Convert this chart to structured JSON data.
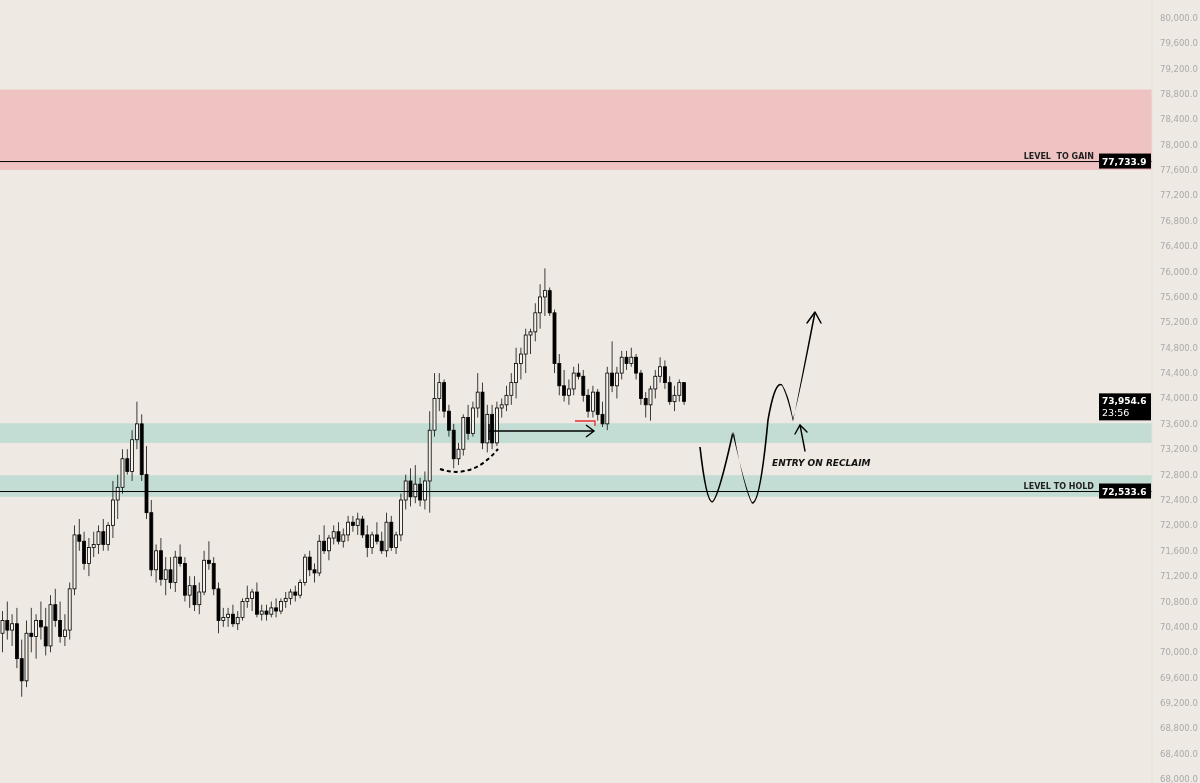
{
  "chart_data": {
    "type": "candlestick",
    "categories": [
      null,
      null,
      null,
      null,
      null,
      null,
      null,
      null,
      null,
      null,
      null,
      null,
      null,
      null,
      null,
      null,
      null,
      null,
      null,
      null,
      null,
      null,
      null,
      null,
      null,
      null,
      null,
      null,
      null,
      null,
      null,
      null,
      null,
      null,
      null,
      null,
      null,
      null,
      null,
      null,
      null,
      null,
      null,
      null,
      null,
      null,
      null,
      null,
      null,
      null,
      null,
      null,
      null,
      null,
      null,
      null,
      null,
      null,
      null,
      null,
      null,
      null,
      null,
      null,
      null,
      null,
      null,
      null,
      null,
      null,
      null,
      null,
      null,
      null,
      null,
      null,
      null,
      null,
      null,
      null,
      null,
      null,
      null,
      null,
      null,
      null,
      null,
      null,
      null,
      null,
      null,
      null,
      null,
      null,
      null,
      null,
      null,
      null,
      null,
      null,
      null,
      null,
      null,
      null,
      null,
      null,
      null,
      null,
      null,
      null,
      null,
      null,
      null,
      null,
      null,
      null,
      null,
      null,
      null,
      null,
      null,
      null,
      null,
      null,
      null,
      null,
      null,
      null,
      null,
      null,
      null,
      null,
      null,
      null,
      null,
      null,
      null,
      null,
      null,
      null,
      null,
      null,
      null,
      null,
      null,
      null,
      null,
      null,
      null,
      null,
      null,
      null,
      null,
      null,
      null,
      null,
      null,
      null,
      null,
      null,
      null,
      null,
      null,
      null,
      null,
      null,
      null,
      null,
      null,
      null,
      null,
      null,
      null,
      null,
      null,
      null,
      null,
      null,
      null,
      null,
      null,
      null,
      null,
      null,
      null,
      null,
      null,
      null,
      null,
      null,
      null,
      null,
      null,
      null,
      null,
      null,
      null,
      null,
      null,
      null,
      null,
      null,
      null,
      null,
      null,
      null,
      null,
      null,
      null,
      null,
      null,
      null,
      null,
      null,
      null,
      null,
      null,
      null,
      null,
      null,
      null,
      null,
      null,
      null,
      null,
      null,
      null,
      null,
      null,
      null,
      null,
      null,
      null,
      null,
      null,
      null,
      null,
      null,
      null,
      null
    ],
    "ohlc": [
      [
        70300,
        70650,
        70000,
        70500
      ],
      [
        70500,
        70800,
        70200,
        70350
      ],
      [
        70350,
        70600,
        70100,
        70450
      ],
      [
        70450,
        70700,
        69750,
        69900
      ],
      [
        69900,
        70200,
        69300,
        69550
      ],
      [
        69550,
        70500,
        69450,
        70300
      ],
      [
        70300,
        70700,
        70000,
        70250
      ],
      [
        70250,
        70600,
        69900,
        70500
      ],
      [
        70500,
        70800,
        70200,
        70400
      ],
      [
        70400,
        70700,
        69950,
        70100
      ],
      [
        70100,
        70900,
        70000,
        70750
      ],
      [
        70750,
        71000,
        70400,
        70500
      ],
      [
        70500,
        70800,
        70150,
        70250
      ],
      [
        70250,
        70600,
        70100,
        70350
      ],
      [
        70350,
        71100,
        70200,
        71000
      ],
      [
        71000,
        72000,
        70900,
        71850
      ],
      [
        71850,
        72100,
        71600,
        71750
      ],
      [
        71750,
        71900,
        71300,
        71400
      ],
      [
        71400,
        71800,
        71200,
        71650
      ],
      [
        71650,
        71900,
        71500,
        71700
      ],
      [
        71700,
        72000,
        71550,
        71900
      ],
      [
        71900,
        72100,
        71600,
        71700
      ],
      [
        71700,
        72050,
        71600,
        72000
      ],
      [
        72000,
        72700,
        71800,
        72400
      ],
      [
        72400,
        72800,
        72100,
        72600
      ],
      [
        72600,
        73200,
        72500,
        73050
      ],
      [
        73050,
        73200,
        72800,
        72850
      ],
      [
        72850,
        73500,
        72700,
        73350
      ],
      [
        73350,
        73950,
        73200,
        73600
      ],
      [
        73600,
        73750,
        72700,
        72800
      ],
      [
        72800,
        73250,
        72100,
        72200
      ],
      [
        72200,
        72400,
        71200,
        71300
      ],
      [
        71300,
        71700,
        71100,
        71600
      ],
      [
        71600,
        71800,
        71050,
        71150
      ],
      [
        71150,
        71500,
        70900,
        71300
      ],
      [
        71300,
        71500,
        71000,
        71100
      ],
      [
        71100,
        71600,
        70950,
        71500
      ],
      [
        71500,
        71700,
        71350,
        71400
      ],
      [
        71400,
        71500,
        70800,
        70900
      ],
      [
        70900,
        71200,
        70700,
        71050
      ],
      [
        71050,
        71200,
        70650,
        70750
      ],
      [
        70750,
        71100,
        70600,
        70950
      ],
      [
        70950,
        71600,
        70900,
        71450
      ],
      [
        71450,
        71750,
        71300,
        71400
      ],
      [
        71400,
        71500,
        70900,
        71000
      ],
      [
        71000,
        71100,
        70300,
        70500
      ],
      [
        70500,
        70700,
        70400,
        70550
      ],
      [
        70550,
        70700,
        70400,
        70600
      ],
      [
        70600,
        70750,
        70400,
        70450
      ],
      [
        70450,
        70650,
        70350,
        70550
      ],
      [
        70550,
        70850,
        70500,
        70800
      ],
      [
        70800,
        71050,
        70700,
        70850
      ],
      [
        70850,
        71000,
        70650,
        70950
      ],
      [
        70950,
        71100,
        70550,
        70600
      ],
      [
        70600,
        70750,
        70500,
        70650
      ],
      [
        70650,
        70750,
        70500,
        70600
      ],
      [
        70600,
        70800,
        70550,
        70700
      ],
      [
        70700,
        70850,
        70550,
        70650
      ],
      [
        70650,
        70850,
        70600,
        70800
      ],
      [
        70800,
        70950,
        70700,
        70850
      ],
      [
        70850,
        71000,
        70750,
        70950
      ],
      [
        70950,
        71050,
        70800,
        70900
      ],
      [
        70900,
        71150,
        70850,
        71100
      ],
      [
        71100,
        71550,
        71050,
        71500
      ],
      [
        71500,
        71600,
        71200,
        71300
      ],
      [
        71300,
        71400,
        71100,
        71250
      ],
      [
        71250,
        71850,
        71200,
        71750
      ],
      [
        71750,
        72000,
        71550,
        71600
      ],
      [
        71600,
        71850,
        71450,
        71800
      ],
      [
        71800,
        72000,
        71700,
        71900
      ],
      [
        71900,
        72050,
        71700,
        71750
      ],
      [
        71750,
        71950,
        71650,
        71850
      ],
      [
        71850,
        72150,
        71750,
        72050
      ],
      [
        72050,
        72150,
        71900,
        72000
      ],
      [
        72000,
        72200,
        71850,
        72100
      ],
      [
        72100,
        72150,
        71800,
        71850
      ],
      [
        71850,
        72000,
        71500,
        71650
      ],
      [
        71650,
        71900,
        71550,
        71850
      ],
      [
        71850,
        72050,
        71700,
        71750
      ],
      [
        71750,
        71900,
        71550,
        71600
      ],
      [
        71600,
        72200,
        71500,
        72050
      ],
      [
        72050,
        72150,
        71600,
        71650
      ],
      [
        71650,
        71900,
        71550,
        71850
      ],
      [
        71850,
        72500,
        71750,
        72400
      ],
      [
        72400,
        72800,
        72250,
        72700
      ],
      [
        72700,
        72900,
        72300,
        72450
      ],
      [
        72450,
        72950,
        72350,
        72650
      ],
      [
        72650,
        72750,
        72300,
        72400
      ],
      [
        72400,
        72850,
        72250,
        72700
      ],
      [
        72700,
        73800,
        72200,
        73500
      ],
      [
        73500,
        74400,
        73400,
        74000
      ],
      [
        74000,
        74400,
        73800,
        74250
      ],
      [
        74250,
        74300,
        73700,
        73800
      ],
      [
        73800,
        73900,
        73400,
        73500
      ],
      [
        73500,
        73600,
        72900,
        73050
      ],
      [
        73050,
        73300,
        72950,
        73200
      ],
      [
        73200,
        73750,
        73100,
        73700
      ],
      [
        73700,
        73900,
        73350,
        73450
      ],
      [
        73450,
        73950,
        73400,
        73850
      ],
      [
        73850,
        74400,
        73700,
        74100
      ],
      [
        74100,
        74250,
        73200,
        73300
      ],
      [
        73300,
        73900,
        73150,
        73750
      ],
      [
        73750,
        73900,
        73200,
        73300
      ],
      [
        73300,
        73950,
        73250,
        73850
      ],
      [
        73850,
        74000,
        73700,
        73900
      ],
      [
        73900,
        74200,
        73800,
        74050
      ],
      [
        74050,
        74400,
        73900,
        74250
      ],
      [
        74250,
        74800,
        74000,
        74550
      ],
      [
        74550,
        74800,
        74300,
        74700
      ],
      [
        74700,
        75100,
        74400,
        75000
      ],
      [
        75000,
        75100,
        74700,
        75050
      ],
      [
        75050,
        75500,
        74900,
        75350
      ],
      [
        75350,
        75800,
        75100,
        75600
      ],
      [
        75600,
        76050,
        75300,
        75700
      ],
      [
        75700,
        75750,
        75300,
        75350
      ],
      [
        75350,
        75400,
        74400,
        74550
      ],
      [
        74550,
        74700,
        74050,
        74200
      ],
      [
        74200,
        74450,
        73950,
        74050
      ],
      [
        74050,
        74300,
        73900,
        74150
      ],
      [
        74150,
        74500,
        74050,
        74400
      ],
      [
        74400,
        74550,
        74300,
        74350
      ],
      [
        74350,
        74450,
        73950,
        74050
      ],
      [
        74050,
        74150,
        73700,
        73800
      ],
      [
        73800,
        74200,
        73700,
        74100
      ],
      [
        74100,
        74150,
        73650,
        73750
      ],
      [
        73750,
        73950,
        73550,
        73600
      ],
      [
        73600,
        74500,
        73500,
        74400
      ],
      [
        74400,
        74900,
        74100,
        74200
      ],
      [
        74200,
        74500,
        74000,
        74400
      ],
      [
        74400,
        74750,
        74300,
        74650
      ],
      [
        74650,
        74750,
        74450,
        74550
      ],
      [
        74550,
        74800,
        74500,
        74650
      ],
      [
        74650,
        74700,
        74300,
        74400
      ],
      [
        74400,
        74450,
        73900,
        74000
      ],
      [
        74000,
        74100,
        73700,
        73900
      ],
      [
        73900,
        74200,
        73650,
        74150
      ],
      [
        74150,
        74450,
        74000,
        74350
      ],
      [
        74350,
        74650,
        74250,
        74500
      ],
      [
        74500,
        74600,
        74150,
        74250
      ],
      [
        74250,
        74350,
        73900,
        73950
      ],
      [
        73950,
        74200,
        73800,
        74050
      ],
      [
        74050,
        74300,
        73950,
        74250
      ],
      [
        74250,
        74250,
        73900,
        73954.6
      ],
      null,
      null,
      null,
      null,
      null,
      null,
      null,
      null,
      null,
      null,
      null,
      null,
      null,
      null,
      null,
      null,
      null,
      null,
      null,
      null,
      null,
      null,
      null,
      null,
      null,
      null,
      null,
      null,
      null,
      null,
      null,
      null,
      null,
      null,
      null,
      null,
      null,
      null,
      null,
      null,
      null,
      null,
      null,
      null,
      null,
      null,
      null,
      null,
      null,
      null,
      null,
      null,
      null,
      null,
      null,
      null,
      null,
      null,
      null,
      null,
      null,
      null,
      null,
      null,
      null,
      null,
      null,
      null,
      null,
      null,
      null,
      null,
      null,
      null,
      null,
      null,
      null,
      null,
      null,
      null,
      null,
      null,
      null,
      null,
      null,
      null,
      null,
      null,
      null,
      null,
      null,
      null,
      null,
      null,
      null,
      null,
      null
    ],
    "color": "#000000",
    "ylim": [
      67940,
      80280
    ],
    "yticks": [
      {
        "value": 68000,
        "label": "68,000.0"
      },
      {
        "value": 68400,
        "label": "68,400.0"
      },
      {
        "value": 68800,
        "label": "68,800.0"
      },
      {
        "value": 69200,
        "label": "69,200.0"
      },
      {
        "value": 69600,
        "label": "69,600.0"
      },
      {
        "value": 70000,
        "label": "70,000.0"
      },
      {
        "value": 70400,
        "label": "70,400.0"
      },
      {
        "value": 70800,
        "label": "70,800.0"
      },
      {
        "value": 71200,
        "label": "71,200.0"
      },
      {
        "value": 71600,
        "label": "71,600.0"
      },
      {
        "value": 72000,
        "label": "72,000.0"
      },
      {
        "value": 72400,
        "label": "72,400.0"
      },
      {
        "value": 72800,
        "label": "72,800.0"
      },
      {
        "value": 73200,
        "label": "73,200.0"
      },
      {
        "value": 73600,
        "label": "73,600.0"
      },
      {
        "value": 74000,
        "label": "74,000.0"
      },
      {
        "value": 74400,
        "label": "74,400.0"
      },
      {
        "value": 74800,
        "label": "74,800.0"
      },
      {
        "value": 75200,
        "label": "75,200.0"
      },
      {
        "value": 75600,
        "label": "75,600.0"
      },
      {
        "value": 76000,
        "label": "76,000.0"
      },
      {
        "value": 76400,
        "label": "76,400.0"
      },
      {
        "value": 76800,
        "label": "76,800.0"
      },
      {
        "value": 77200,
        "label": "77,200.0"
      },
      {
        "value": 77600,
        "label": "77,600.0"
      },
      {
        "value": 78000,
        "label": "78,000.0"
      },
      {
        "value": 78400,
        "label": "78,400.0"
      },
      {
        "value": 78800,
        "label": "78,800.0"
      },
      {
        "value": 79200,
        "label": "79,200.0"
      },
      {
        "value": 79600,
        "label": "79,600.0"
      },
      {
        "value": 80000,
        "label": "80,000.0"
      }
    ],
    "tick_labels": "y",
    "grid": false,
    "legend": false,
    "bands": [
      {
        "axis": "y",
        "from": 77600,
        "to": 78870,
        "color": "#efc3c2"
      },
      {
        "axis": "y",
        "from": 73300,
        "to": 73610,
        "color": "#c3ddd4"
      },
      {
        "axis": "y",
        "from": 72450,
        "to": 72790,
        "color": "#c3ddd4"
      }
    ],
    "ref_lines": [
      {
        "axis": "y",
        "value": 77733.9,
        "label": "LEVEL  TO GAIN",
        "color": "#000000"
      },
      {
        "axis": "y",
        "value": 72533.6,
        "label": "LEVEL TO HOLD",
        "color": "#000000"
      }
    ],
    "annotations": [
      {
        "text": "77,733.9",
        "y": 77733.9
      },
      {
        "text": "72,533.6",
        "y": 72533.6
      },
      "73,954.6",
      "23:56",
      "ENTRY ON RECLAIM"
    ]
  }
}
